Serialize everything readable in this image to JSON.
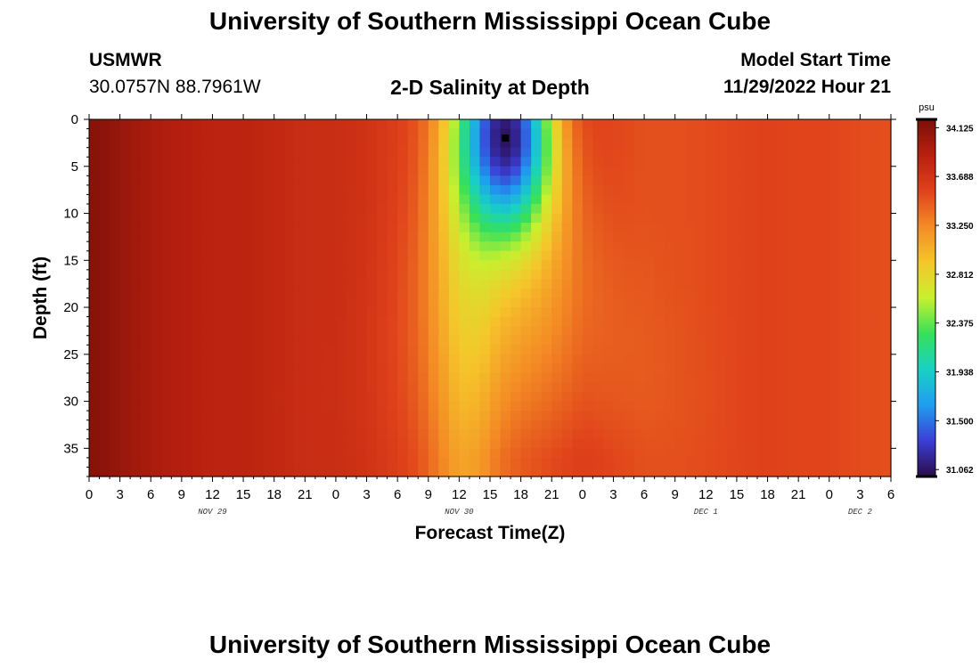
{
  "page": {
    "title": "University of Southern Mississippi Ocean Cube",
    "title_repeat": "University of Southern Mississippi Ocean Cube",
    "station_name": "USMWR",
    "station_coords": "30.0757N  88.7961W",
    "plot_subtitle": "2-D Salinity at Depth",
    "model_start_label": "Model Start Time",
    "model_start_value": "11/29/2022 Hour 21"
  },
  "chart_data": {
    "type": "heatmap",
    "title": "2-D Salinity at Depth",
    "xlabel": "Forecast Time(Z)",
    "ylabel": "Depth (ft)",
    "x_unit": "forecast hours from 11/29/2022 00Z",
    "xlim": [
      0,
      78
    ],
    "ylim": [
      0,
      38
    ],
    "y_inverted": true,
    "x_ticks": [
      0,
      3,
      6,
      9,
      12,
      15,
      18,
      21,
      24,
      27,
      30,
      33,
      36,
      39,
      42,
      45,
      48,
      51,
      54,
      57,
      60,
      63,
      66,
      69,
      72,
      75,
      78
    ],
    "x_tick_labels": [
      "0",
      "3",
      "6",
      "9",
      "12",
      "15",
      "18",
      "21",
      "0",
      "3",
      "6",
      "9",
      "12",
      "15",
      "18",
      "21",
      "0",
      "3",
      "6",
      "9",
      "12",
      "15",
      "18",
      "21",
      "0",
      "3",
      "6"
    ],
    "y_ticks": [
      0,
      5,
      10,
      15,
      20,
      25,
      30,
      35
    ],
    "y_tick_labels": [
      "0",
      "5",
      "10",
      "15",
      "20",
      "25",
      "30",
      "35"
    ],
    "day_labels": [
      {
        "text": "NOV 29",
        "x": 12
      },
      {
        "text": "NOV 30",
        "x": 36
      },
      {
        "text": "DEC 1",
        "x": 60
      },
      {
        "text": "DEC 2",
        "x": 75
      }
    ],
    "colorbar": {
      "unit": "psu",
      "min": 31.0,
      "max": 34.2,
      "tick_values": [
        34.125,
        33.688,
        33.25,
        32.812,
        32.375,
        31.938,
        31.5,
        31.062
      ],
      "tick_labels": [
        "34.125",
        "33.688",
        "33.250",
        "32.812",
        "32.375",
        "31.938",
        "31.500",
        "31.062"
      ]
    },
    "field": {
      "columns_x": [
        0,
        3,
        6,
        9,
        12,
        15,
        18,
        21,
        24,
        27,
        30,
        32,
        34,
        36,
        38,
        40,
        42,
        44,
        46,
        48,
        51,
        54,
        57,
        60,
        63,
        66,
        69,
        72,
        75,
        78
      ],
      "background_psu": [
        34.15,
        34.05,
        33.95,
        33.9,
        33.85,
        33.85,
        33.8,
        33.75,
        33.75,
        33.7,
        33.6,
        33.5,
        33.3,
        33.1,
        33.15,
        33.35,
        33.45,
        33.5,
        33.55,
        33.6,
        33.55,
        33.5,
        33.5,
        33.52,
        33.55,
        33.57,
        33.55,
        33.55,
        33.52,
        33.5
      ],
      "plume_center_x": 40.5,
      "plume_min_psu": 31.06,
      "plume_min_depth_ft": 2
    },
    "colors": {
      "scale": [
        "#2a0a4a",
        "#3b3fd6",
        "#1f9df0",
        "#19d1c4",
        "#36e05a",
        "#c8f02e",
        "#f5c62b",
        "#f48b25",
        "#e0421b",
        "#b8200f",
        "#7a0f08"
      ]
    }
  }
}
